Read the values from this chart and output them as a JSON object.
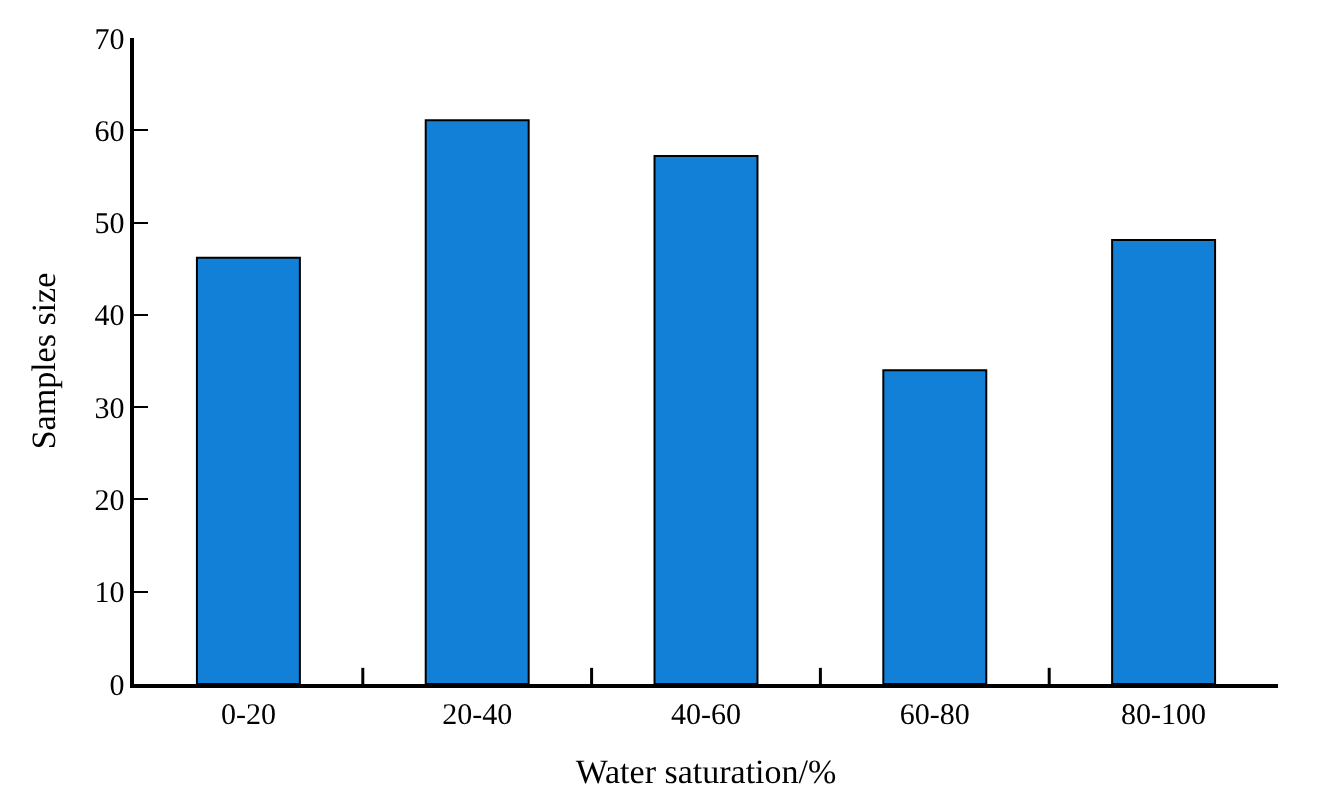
{
  "chart_data": {
    "type": "bar",
    "xlabel": "Water saturation/%",
    "ylabel": "Samples size",
    "categories": [
      "0-20",
      "20-40",
      "40-60",
      "60-80",
      "80-100"
    ],
    "values": [
      46.2,
      61.1,
      57.2,
      34,
      48.1
    ],
    "color": "#1380d8",
    "ylim": [
      0,
      70
    ],
    "yticks": [
      0,
      10,
      20,
      30,
      40,
      50,
      60,
      70
    ]
  }
}
